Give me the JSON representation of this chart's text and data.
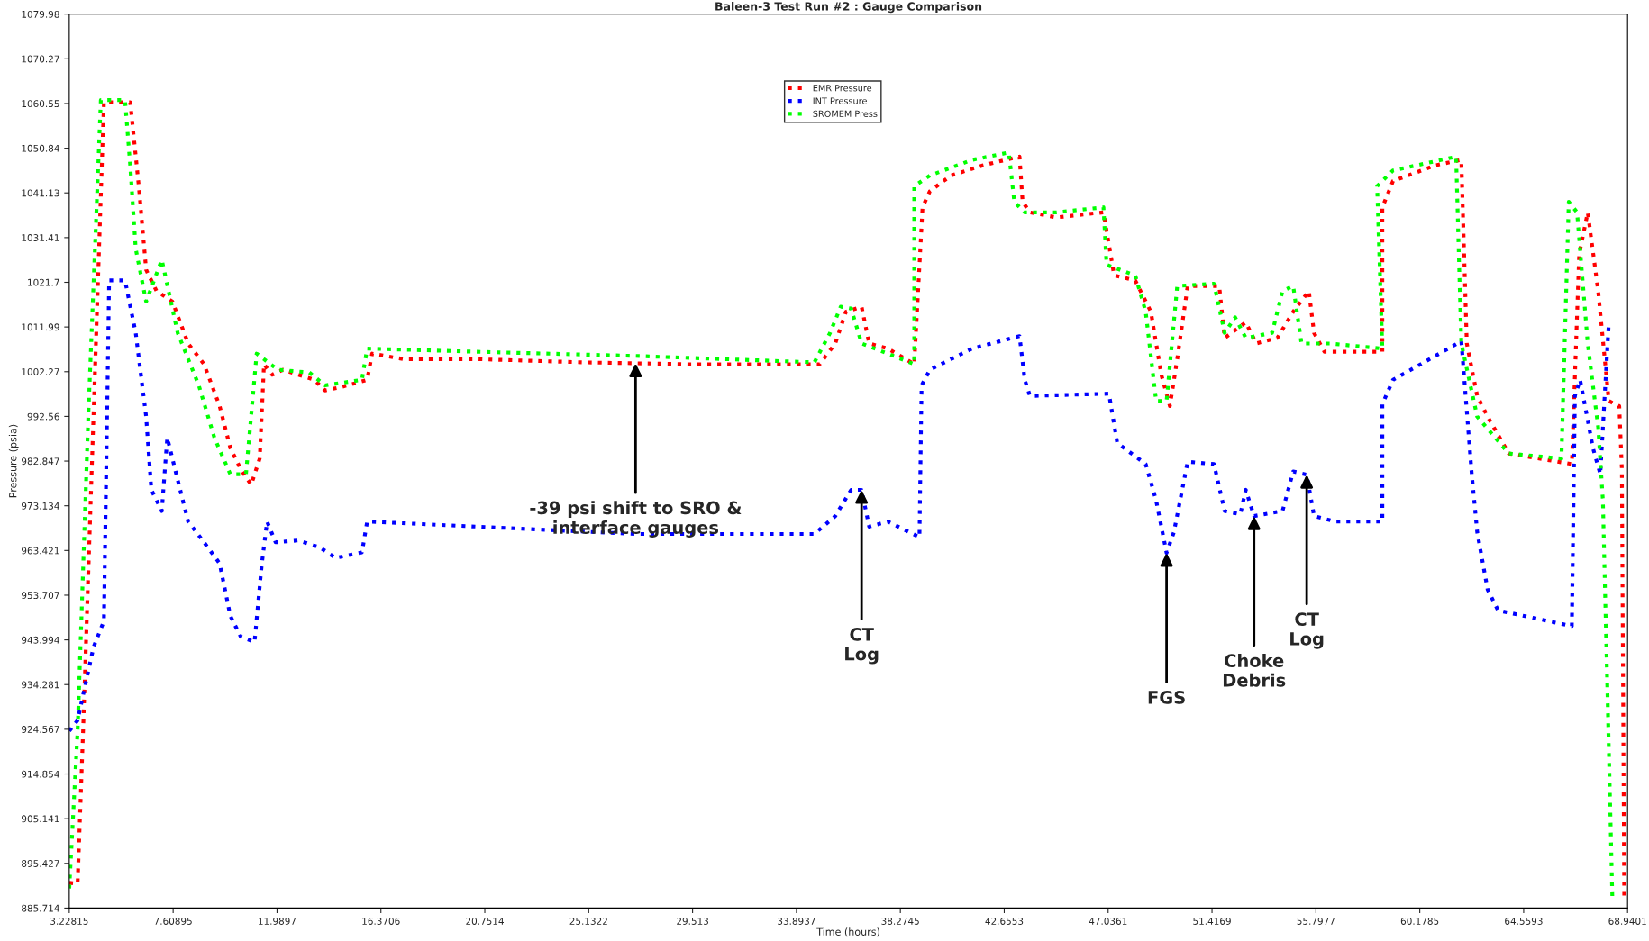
{
  "chart_data": {
    "type": "line",
    "title": "Baleen-3 Test Run #2 : Gauge Comparison",
    "xlabel": "Time (hours)",
    "ylabel": "Pressure (psia)",
    "xlim": [
      3.22815,
      68.9401
    ],
    "xticks": [
      3.22815,
      7.60895,
      11.9897,
      16.3706,
      20.7514,
      25.1322,
      29.513,
      33.8937,
      38.2745,
      42.6553,
      47.0361,
      51.4169,
      55.7977,
      60.1785,
      64.5593,
      68.9401
    ],
    "ylim": [
      885.714,
      1079.98
    ],
    "yticks": [
      885.714,
      895.427,
      905.141,
      914.854,
      924.567,
      934.281,
      943.994,
      953.707,
      963.421,
      973.134,
      982.847,
      992.56,
      1002.27,
      1011.99,
      1021.7,
      1031.41,
      1041.13,
      1050.84,
      1060.55,
      1070.27,
      1079.98
    ],
    "grid": false,
    "legend": "top",
    "line_style": "dotted",
    "marker": "none",
    "series": [
      {
        "name": "EMR Pressure",
        "color": "#ff0000",
        "x": [
          3.23,
          3.58,
          3.81,
          4.25,
          4.69,
          5.8,
          6.16,
          6.47,
          6.91,
          7.58,
          8.24,
          8.91,
          9.57,
          10.02,
          10.46,
          10.9,
          11.26,
          11.44,
          11.79,
          12.24,
          12.9,
          13.57,
          14.01,
          14.68,
          15.79,
          16.0,
          17.35,
          20.45,
          24.89,
          29.32,
          33.76,
          34.87,
          35.53,
          35.98,
          36.64,
          36.96,
          37.75,
          38.86,
          39.21,
          39.52,
          40.41,
          41.74,
          43.3,
          43.43,
          43.74,
          44.85,
          46.84,
          47.29,
          48.18,
          48.84,
          49.28,
          49.64,
          49.95,
          50.39,
          51.72,
          51.95,
          52.84,
          53.28,
          54.17,
          54.84,
          55.5,
          55.72,
          56.16,
          58.6,
          58.6,
          59.05,
          60.82,
          61.93,
          62.16,
          62.6,
          63.04,
          63.93,
          66.59,
          66.9,
          67.26,
          67.7,
          68.15,
          68.59,
          68.7,
          68.8
        ],
        "values": [
          891.2,
          891,
          924,
          992.5,
          1060.8,
          1060.8,
          1042.6,
          1024.4,
          1019.8,
          1017.5,
          1008.4,
          1003.9,
          994.8,
          985.7,
          981.1,
          977.7,
          983.4,
          1003.9,
          1001.6,
          1002.7,
          1001.6,
          1000.5,
          998.2,
          998.9,
          1000.5,
          1006.2,
          1005,
          1005,
          1004.3,
          1003.9,
          1003.9,
          1003.9,
          1008.4,
          1015.3,
          1016.4,
          1008.4,
          1007.3,
          1003.9,
          1038,
          1041.5,
          1044.9,
          1047.1,
          1049,
          1039.2,
          1036.9,
          1035.8,
          1036.9,
          1023.2,
          1022.1,
          1015.3,
          1001.6,
          994.8,
          1005,
          1020.9,
          1020.9,
          1009.6,
          1013,
          1008.4,
          1009.6,
          1015.3,
          1019.8,
          1010.7,
          1006.6,
          1006.6,
          1038,
          1043.7,
          1047.1,
          1048.3,
          1008.4,
          997,
          992.5,
          984.5,
          982.2,
          1027.8,
          1036.9,
          1019.8,
          995.9,
          994.8,
          981,
          887.7
        ]
      },
      {
        "name": "INT Pressure",
        "color": "#0000ff",
        "x": [
          3.23,
          3.58,
          4.25,
          4.69,
          4.91,
          5.58,
          6.03,
          6.47,
          6.69,
          7.13,
          7.36,
          7.8,
          8.24,
          8.91,
          9.57,
          10.02,
          10.46,
          11.04,
          11.35,
          11.57,
          11.93,
          12.9,
          13.79,
          14.46,
          15.57,
          15.79,
          20.45,
          27.11,
          34.65,
          35.53,
          36.2,
          36.64,
          36.96,
          37.75,
          39.08,
          39.17,
          39.52,
          41.3,
          43.3,
          43.52,
          43.74,
          47.07,
          47.42,
          48.62,
          49.06,
          49.5,
          49.81,
          50.39,
          51.5,
          51.95,
          52.61,
          52.84,
          53.19,
          54.39,
          54.84,
          55.41,
          55.72,
          56.61,
          58.6,
          58.6,
          59.05,
          61.93,
          62.37,
          62.6,
          63.04,
          63.48,
          66.59,
          66.72,
          66.94,
          67.48,
          67.79,
          68.15
        ],
        "values": [
          924.2,
          926.5,
          942.4,
          948.1,
          1022.1,
          1022.1,
          1010.7,
          992.5,
          976.6,
          972,
          987.9,
          978.8,
          969.7,
          965.2,
          960.6,
          949.2,
          944.7,
          943.5,
          960.6,
          969.7,
          965.2,
          965.6,
          964.1,
          961.8,
          963,
          969.7,
          968.6,
          967,
          967,
          970.9,
          976.6,
          976.6,
          968.6,
          969.7,
          966.3,
          999.3,
          1002.7,
          1007.3,
          1010,
          1000.5,
          997,
          997.5,
          986.8,
          982.2,
          974.3,
          962.9,
          967.4,
          982.7,
          982.2,
          972,
          971.3,
          976.6,
          970.9,
          972,
          980.6,
          979.9,
          970.9,
          969.7,
          969.7,
          995.2,
          1000.5,
          1008.9,
          980,
          967.4,
          954.9,
          950.4,
          947,
          997,
          1000.5,
          985.7,
          980,
          1013
        ]
      },
      {
        "name": "SROMEM Press",
        "color": "#00ff00",
        "x": [
          3.23,
          3.58,
          4.03,
          4.56,
          5.58,
          5.8,
          6.03,
          6.47,
          7.13,
          7.8,
          8.69,
          9.35,
          10.02,
          10.68,
          11.13,
          12.02,
          13.35,
          14.01,
          15.57,
          15.79,
          20.45,
          27.11,
          34.65,
          35.31,
          35.76,
          36.2,
          36.64,
          37.75,
          38.86,
          38.86,
          39.52,
          41.3,
          42.85,
          43.08,
          43.52,
          44.85,
          46.84,
          46.97,
          48.18,
          48.62,
          49.06,
          49.5,
          49.95,
          51.5,
          51.95,
          52.39,
          52.84,
          53.95,
          54.39,
          54.84,
          55.19,
          56.39,
          58.6,
          58.38,
          59.05,
          61.71,
          61.93,
          62.6,
          63.93,
          66.15,
          66.46,
          66.81,
          67.26,
          67.7,
          67.9,
          68.3
        ],
        "values": [
          890,
          924.2,
          992.5,
          1061.3,
          1061.3,
          1047,
          1029,
          1017.5,
          1026.6,
          1010.7,
          999.3,
          987.9,
          980,
          980,
          1006.2,
          1002.7,
          1002.1,
          999.3,
          1000.5,
          1007.3,
          1006.6,
          1005.7,
          1004.3,
          1010.7,
          1016.4,
          1016,
          1008.4,
          1006.2,
          1003.9,
          1042.6,
          1044.9,
          1048.3,
          1049.9,
          1039.2,
          1036.9,
          1036.9,
          1038,
          1025.5,
          1023.2,
          1015.3,
          995.9,
          995.9,
          1020.9,
          1021.4,
          1010.7,
          1014.1,
          1009.6,
          1010.7,
          1019.8,
          1020.9,
          1008.4,
          1008.4,
          1007.3,
          1042.6,
          1046,
          1049,
          1008.4,
          992.5,
          984.5,
          983.4,
          1039.2,
          1036.9,
          1008.4,
          990.2,
          974.3,
          887.7
        ]
      }
    ],
    "annotations": [
      {
        "text": "-39 psi shift to SRO &\ninterface gauges",
        "x": 27.11,
        "y": 1004.1
      },
      {
        "text": "CT\nLog",
        "x": 36.64,
        "y": 976.6
      },
      {
        "text": "FGS",
        "x": 49.5,
        "y": 962.9
      },
      {
        "text": "Choke\nDebris",
        "x": 53.19,
        "y": 970.9
      },
      {
        "text": "CT\nLog",
        "x": 55.41,
        "y": 979.9
      }
    ]
  }
}
